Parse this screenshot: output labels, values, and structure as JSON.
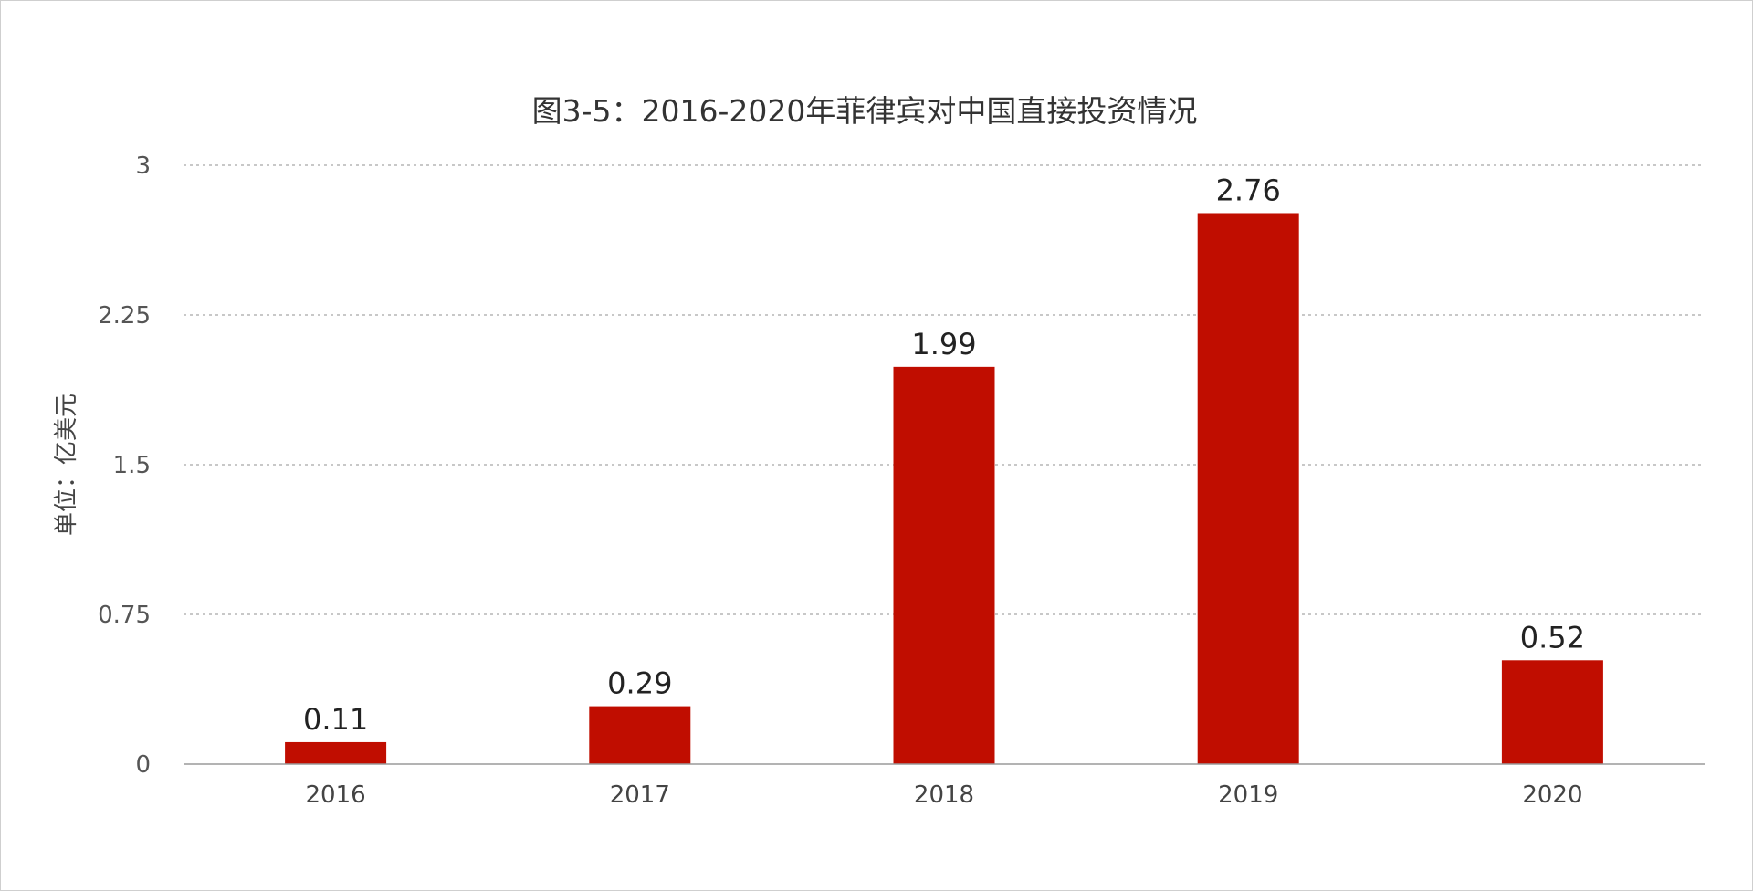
{
  "chart_data": {
    "type": "bar",
    "title": "图3-5：2016-2020年菲律宾对中国直接投资情况",
    "xlabel": "",
    "ylabel": "单位：亿美元",
    "categories": [
      "2016",
      "2017",
      "2018",
      "2019",
      "2020"
    ],
    "values": [
      0.11,
      0.29,
      1.99,
      2.76,
      0.52
    ],
    "data_labels": [
      "0.11",
      "0.29",
      "1.99",
      "2.76",
      "0.52"
    ],
    "ylim": [
      0,
      3
    ],
    "yticks": [
      0,
      0.75,
      1.5,
      2.25,
      3
    ],
    "ytick_labels": [
      "0",
      "0.75",
      "1.5",
      "2.25",
      "3"
    ],
    "grid": true,
    "legend": "none",
    "bar_color": "#c00d00"
  }
}
